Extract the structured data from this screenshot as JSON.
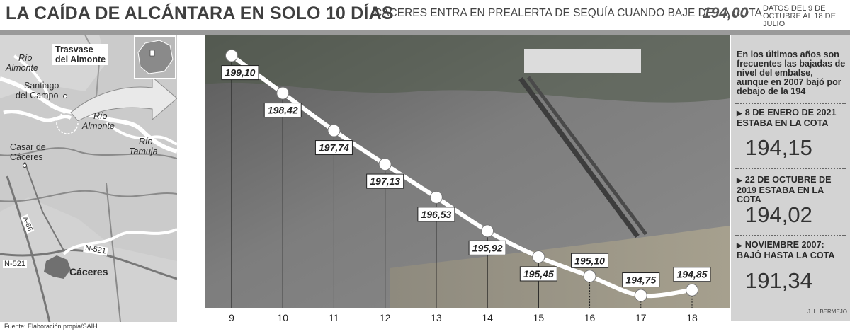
{
  "header": {
    "title": "LA CAÍDA DE ALCÁNTARA EN SOLO 10 DÍAS",
    "subtitle": "CÁCERES ENTRA EN PREALERTA DE SEQUÍA CUANDO BAJE DE LA COTA",
    "subtitle_value": "194,00",
    "dates": "DATOS DEL 9 DE OCTUBRE AL 18 DE JULIO"
  },
  "map": {
    "labels": {
      "rio_almonte_top_1": "Río",
      "rio_almonte_top_2": "Almonte",
      "trasvase_1": "Trasvase",
      "trasvase_2": "del Almonte",
      "santiago_1": "Santiago",
      "santiago_2": "del Campo",
      "rio_almonte_mid_1": "Río",
      "rio_almonte_mid_2": "Almonte",
      "rio_tamuja_1": "Río",
      "rio_tamuja_2": "Tamuja",
      "casar_1": "Casar de",
      "casar_2": "Cáceres",
      "road_a66": "A-66",
      "road_n521_left": "N-521",
      "road_n521_right": "N-521",
      "caceres": "Cáceres"
    },
    "source": "Fuente: Elaboración propia/SAIH"
  },
  "side_panel": {
    "intro": "En los últimos años son frecuentes las bajadas de nivel del embalse, aunque en 2007 bajó por debajo de la 194",
    "facts": [
      {
        "heading": "8 DE ENERO DE 2021 ESTABA EN LA COTA",
        "value": "194,15"
      },
      {
        "heading": "22 DE OCTUBRE DE 2019 ESTABA EN LA COTA",
        "value": "194,02"
      },
      {
        "heading": "NOVIEMBRE 2007: BAJÓ HASTA LA COTA",
        "value": "191,34"
      }
    ]
  },
  "credit": "J. L. BERMEJO",
  "chart_data": {
    "type": "line",
    "title": "LA CAÍDA DE ALCÁNTARA EN SOLO 10 DÍAS",
    "x": [
      9,
      10,
      11,
      12,
      13,
      14,
      15,
      16,
      17,
      18
    ],
    "x_labels": [
      "9",
      "10",
      "11",
      "12",
      "13",
      "14",
      "15",
      "16",
      "17",
      "18"
    ],
    "values": [
      199.1,
      198.42,
      197.74,
      197.13,
      196.53,
      195.92,
      195.45,
      195.1,
      194.75,
      194.85
    ],
    "value_labels": [
      "199,10",
      "198,42",
      "197,74",
      "197,13",
      "196,53",
      "195,92",
      "195,45",
      "195,10",
      "194,75",
      "194,85"
    ],
    "ylim": [
      194.5,
      199.3
    ],
    "grid": false,
    "xlabel": "",
    "ylabel": "",
    "colors": {
      "line": "#ffffff",
      "marker": "#ffffff",
      "label_bg": "#ffffff",
      "label_text": "#222222"
    }
  }
}
